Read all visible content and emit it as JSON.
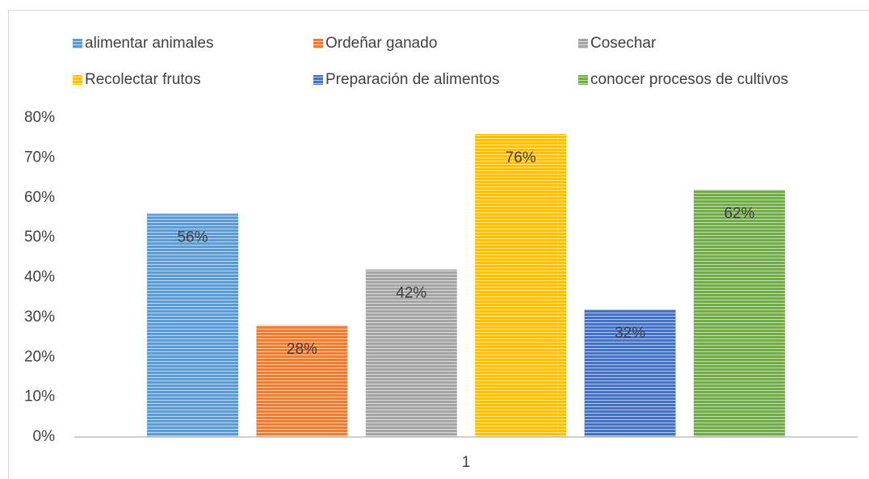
{
  "chart_data": {
    "type": "bar",
    "categories": [
      "1"
    ],
    "series": [
      {
        "name": "alimentar animales",
        "color": "#5B9BD5",
        "values": [
          56
        ],
        "value_labels": [
          "56%"
        ]
      },
      {
        "name": "Ordeñar ganado",
        "color": "#ED7D31",
        "values": [
          28
        ],
        "value_labels": [
          "28%"
        ]
      },
      {
        "name": "Cosechar",
        "color": "#A5A5A5",
        "values": [
          42
        ],
        "value_labels": [
          "42%"
        ]
      },
      {
        "name": "Recolectar frutos",
        "color": "#FFC000",
        "values": [
          76
        ],
        "value_labels": [
          "76%"
        ]
      },
      {
        "name": "Preparación de alimentos",
        "color": "#4472C4",
        "values": [
          32
        ],
        "value_labels": [
          "32%"
        ]
      },
      {
        "name": "conocer procesos de cultivos",
        "color": "#70AD47",
        "values": [
          62
        ],
        "value_labels": [
          "62%"
        ]
      }
    ],
    "ylim": [
      0,
      80
    ],
    "yticks": [
      {
        "value": 0,
        "label": "0%"
      },
      {
        "value": 10,
        "label": "10%"
      },
      {
        "value": 20,
        "label": "20%"
      },
      {
        "value": 30,
        "label": "30%"
      },
      {
        "value": 40,
        "label": "40%"
      },
      {
        "value": 50,
        "label": "50%"
      },
      {
        "value": 60,
        "label": "60%"
      },
      {
        "value": 70,
        "label": "70%"
      },
      {
        "value": 80,
        "label": "80%"
      }
    ],
    "grid": false,
    "legend": "top"
  }
}
